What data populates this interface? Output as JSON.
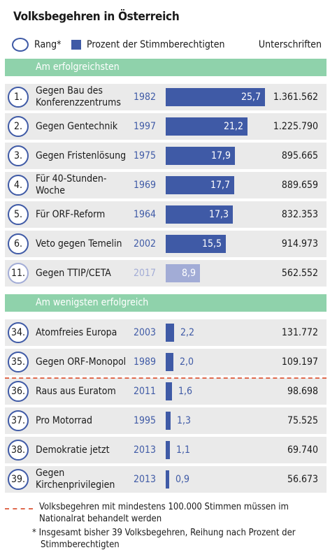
{
  "title": "Volksbegehren in Österreich",
  "legend": {
    "rank_label": "Rang*",
    "percent_label": "Prozent der Stimmberechtigten",
    "signatures_label": "Unterschriften"
  },
  "colors": {
    "bar": "#3f5aa6",
    "bar_muted": "#a2acd6",
    "section_header": "#8fd2ab",
    "row_background": "#eaeaea",
    "threshold_line": "#e06a4e"
  },
  "chart_data": {
    "type": "bar",
    "orientation": "horizontal",
    "xlim": [
      0,
      26
    ],
    "groups": [
      {
        "name": "Am erfolgreichsten",
        "rows": [
          {
            "rank": "1.",
            "label": "Gegen Bau des Konferenzzentrums",
            "year": "1982",
            "percent": 25.7,
            "percent_label": "25,7",
            "signatures": "1.361.562"
          },
          {
            "rank": "2.",
            "label": "Gegen Gentechnik",
            "year": "1997",
            "percent": 21.2,
            "percent_label": "21,2",
            "signatures": "1.225.790"
          },
          {
            "rank": "3.",
            "label": "Gegen Fristenlösung",
            "year": "1975",
            "percent": 17.9,
            "percent_label": "17,9",
            "signatures": "895.665"
          },
          {
            "rank": "4.",
            "label": "Für 40-Stunden-Woche",
            "year": "1969",
            "percent": 17.7,
            "percent_label": "17,7",
            "signatures": "889.659"
          },
          {
            "rank": "5.",
            "label": "Für ORF-Reform",
            "year": "1964",
            "percent": 17.3,
            "percent_label": "17,3",
            "signatures": "832.353"
          },
          {
            "rank": "6.",
            "label": "Veto gegen Temelin",
            "year": "2002",
            "percent": 15.5,
            "percent_label": "15,5",
            "signatures": "914.973"
          },
          {
            "rank": "11.",
            "label": "Gegen TTIP/CETA",
            "year": "2017",
            "percent": 8.9,
            "percent_label": "8,9",
            "signatures": "562.552",
            "highlight": true
          }
        ]
      },
      {
        "name": "Am wenigsten erfolgreich",
        "rows": [
          {
            "rank": "34.",
            "label": "Atomfreies Europa",
            "year": "2003",
            "percent": 2.2,
            "percent_label": "2,2",
            "signatures": "131.772"
          },
          {
            "rank": "35.",
            "label": "Gegen ORF-Monopol",
            "year": "1989",
            "percent": 2.0,
            "percent_label": "2,0",
            "signatures": "109.197"
          },
          {
            "rank": "36.",
            "label": "Raus aus Euratom",
            "year": "2011",
            "percent": 1.6,
            "percent_label": "1,6",
            "signatures": "98.698"
          },
          {
            "rank": "37.",
            "label": "Pro Motorrad",
            "year": "1995",
            "percent": 1.3,
            "percent_label": "1,3",
            "signatures": "75.525"
          },
          {
            "rank": "38.",
            "label": "Demokratie jetzt",
            "year": "2013",
            "percent": 1.1,
            "percent_label": "1,1",
            "signatures": "69.740"
          },
          {
            "rank": "39.",
            "label": "Gegen Kirchenprivilegien",
            "year": "2013",
            "percent": 0.9,
            "percent_label": "0,9",
            "signatures": "56.673"
          }
        ]
      }
    ]
  },
  "footnotes": {
    "threshold": "Volksbegehren mit mindestens 100.000 Stimmen müssen im Nationalrat behandelt werden",
    "ranking_star": "*",
    "ranking": "Insgesamt bisher 39 Volksbegehren, Reihung nach Prozent der Stimmberechtigten"
  }
}
